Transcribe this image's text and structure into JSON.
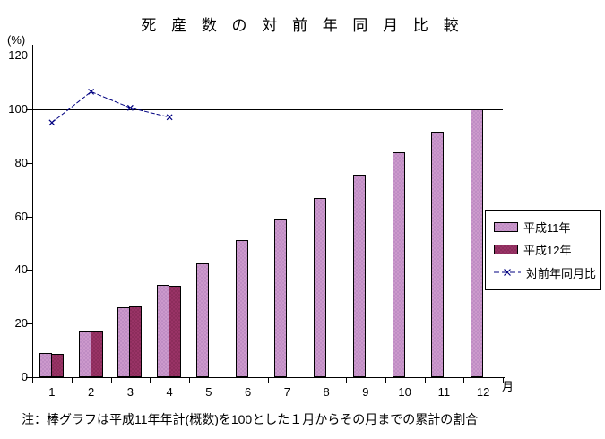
{
  "note": "注：棒グラフは平成11年年計(概数)を100とした１月からその月までの累計の割合",
  "chart_data": {
    "type": "bar",
    "title": "死 産 数 の 対 前 年 同 月 比 較",
    "unit_label": "(%)",
    "x_unit_label": "月",
    "categories": [
      "1",
      "2",
      "3",
      "4",
      "5",
      "6",
      "7",
      "8",
      "9",
      "10",
      "11",
      "12"
    ],
    "ylim": [
      0,
      120
    ],
    "ytick_step": 20,
    "reference_line": 100,
    "grid": false,
    "legend_position": "right",
    "series": [
      {
        "name": "平成11年",
        "type": "bar",
        "color": "#CC99CC",
        "values": [
          9,
          17,
          26,
          34.5,
          42.5,
          51,
          59,
          67,
          75.5,
          84,
          91.5,
          100
        ]
      },
      {
        "name": "平成12年",
        "type": "bar",
        "color": "#993366",
        "values": [
          8.6,
          17,
          26.4,
          34,
          null,
          null,
          null,
          null,
          null,
          null,
          null,
          null
        ]
      },
      {
        "name": "対前年同月比",
        "type": "line",
        "color": "#000080",
        "marker": "x",
        "values": [
          95,
          106.5,
          100.5,
          97,
          null,
          null,
          null,
          null,
          null,
          null,
          null,
          null
        ]
      }
    ]
  }
}
